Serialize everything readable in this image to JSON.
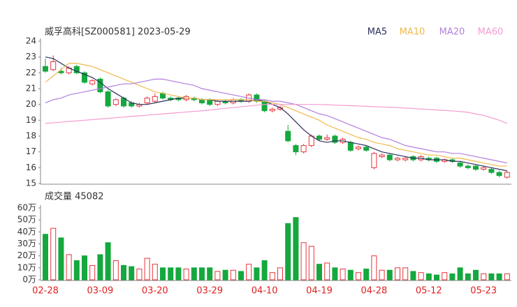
{
  "chart_data": [
    {
      "type": "candlestick",
      "title": "威孚高科[SZ000581] 2023-05-29",
      "categories": [
        "02-28",
        null,
        null,
        null,
        null,
        null,
        null,
        "03-09",
        null,
        null,
        null,
        null,
        null,
        null,
        "03-20",
        null,
        null,
        null,
        null,
        null,
        null,
        "03-29",
        null,
        null,
        null,
        null,
        null,
        null,
        "04-10",
        null,
        null,
        null,
        null,
        null,
        null,
        "04-19",
        null,
        null,
        null,
        null,
        null,
        null,
        "04-28",
        null,
        null,
        null,
        null,
        null,
        null,
        "05-12",
        null,
        null,
        null,
        null,
        null,
        null,
        "05-23",
        null,
        null,
        null
      ],
      "open": [
        22.4,
        22.2,
        22.1,
        22.0,
        22.4,
        22.0,
        21.3,
        21.6,
        20.8,
        20.0,
        20.4,
        20.1,
        19.9,
        20.1,
        20.2,
        20.7,
        20.4,
        20.4,
        20.3,
        20.4,
        20.3,
        20.3,
        20.0,
        20.2,
        20.1,
        20.3,
        20.2,
        20.6,
        20.2,
        19.6,
        19.7,
        18.3,
        17.4,
        17.0,
        17.4,
        18.0,
        17.8,
        18.0,
        17.6,
        17.6,
        17.2,
        17.3,
        16.0,
        16.7,
        16.8,
        16.5,
        16.5,
        16.7,
        16.5,
        16.6,
        16.6,
        16.4,
        16.5,
        16.3,
        16.1,
        16.1,
        15.9,
        15.9,
        15.7,
        15.4
      ],
      "high": [
        22.9,
        23.1,
        22.3,
        22.4,
        22.5,
        22.1,
        21.6,
        21.7,
        20.9,
        20.4,
        20.5,
        20.2,
        20.1,
        20.5,
        20.7,
        20.8,
        20.5,
        20.5,
        20.6,
        20.5,
        20.4,
        20.4,
        20.3,
        20.3,
        20.4,
        20.4,
        20.7,
        20.7,
        20.3,
        19.8,
        19.9,
        18.7,
        17.5,
        17.5,
        18.1,
        18.1,
        18.1,
        18.1,
        17.9,
        17.7,
        17.4,
        17.4,
        17.0,
        16.9,
        16.9,
        16.7,
        16.7,
        16.8,
        16.8,
        16.7,
        16.7,
        16.6,
        16.6,
        16.4,
        16.2,
        16.2,
        16.1,
        16.0,
        15.8,
        15.8
      ],
      "low": [
        22.0,
        22.1,
        21.9,
        21.9,
        21.9,
        21.3,
        21.2,
        20.7,
        19.8,
        19.9,
        19.8,
        19.8,
        19.8,
        20.0,
        20.1,
        20.3,
        20.2,
        20.2,
        20.2,
        20.2,
        20.0,
        19.9,
        19.9,
        20.0,
        20.0,
        20.1,
        20.1,
        20.1,
        19.5,
        19.5,
        19.6,
        17.6,
        16.8,
        16.9,
        17.3,
        17.7,
        17.7,
        17.5,
        17.5,
        17.0,
        17.1,
        17.0,
        15.9,
        16.6,
        16.4,
        16.4,
        16.4,
        16.4,
        16.4,
        16.4,
        16.3,
        16.3,
        16.3,
        16.0,
        15.9,
        15.8,
        15.8,
        15.6,
        15.4,
        15.3
      ],
      "close": [
        22.1,
        22.7,
        22.0,
        22.3,
        22.0,
        21.4,
        21.5,
        20.8,
        19.9,
        20.3,
        19.9,
        19.9,
        20.0,
        20.4,
        20.5,
        20.4,
        20.3,
        20.3,
        20.5,
        20.3,
        20.1,
        20.0,
        20.2,
        20.1,
        20.3,
        20.2,
        20.6,
        20.2,
        19.6,
        19.7,
        19.8,
        17.7,
        17.0,
        17.4,
        18.0,
        17.8,
        17.9,
        17.6,
        17.8,
        17.1,
        17.3,
        17.1,
        16.9,
        16.8,
        16.5,
        16.6,
        16.6,
        16.5,
        16.7,
        16.5,
        16.4,
        16.5,
        16.4,
        16.1,
        16.0,
        15.9,
        16.0,
        15.7,
        15.5,
        15.7
      ],
      "up_color": "#e8343b",
      "down_color": "#15a83e",
      "series": [
        {
          "name": "MA5",
          "color": "#2b2f5c",
          "values": [
            23.0,
            22.9,
            22.6,
            22.3,
            22.1,
            21.9,
            21.7,
            21.4,
            21.0,
            20.7,
            20.4,
            20.1,
            20.0,
            20.0,
            20.1,
            20.2,
            20.3,
            20.4,
            20.4,
            20.4,
            20.3,
            20.3,
            20.2,
            20.2,
            20.2,
            20.2,
            20.2,
            20.3,
            20.2,
            20.0,
            19.8,
            19.4,
            18.9,
            18.4,
            18.0,
            17.7,
            17.6,
            17.7,
            17.7,
            17.6,
            17.5,
            17.4,
            17.2,
            17.0,
            16.9,
            16.8,
            16.7,
            16.6,
            16.6,
            16.5,
            16.5,
            16.5,
            16.4,
            16.4,
            16.3,
            16.2,
            16.1,
            16.0,
            15.9,
            15.8
          ]
        },
        {
          "name": "MA10",
          "color": "#f0b94c",
          "values": [
            21.4,
            21.8,
            22.2,
            22.6,
            22.6,
            22.5,
            22.4,
            22.2,
            22.0,
            21.8,
            21.6,
            21.4,
            21.2,
            21.0,
            20.8,
            20.7,
            20.6,
            20.5,
            20.4,
            20.4,
            20.3,
            20.3,
            20.3,
            20.3,
            20.3,
            20.3,
            20.3,
            20.2,
            20.2,
            20.1,
            20.0,
            19.8,
            19.6,
            19.4,
            19.2,
            19.0,
            18.7,
            18.5,
            18.3,
            18.1,
            17.9,
            17.8,
            17.6,
            17.5,
            17.4,
            17.2,
            17.1,
            17.0,
            16.9,
            16.8,
            16.8,
            16.7,
            16.6,
            16.6,
            16.5,
            16.4,
            16.3,
            16.2,
            16.1,
            16.1
          ]
        },
        {
          "name": "MA20",
          "color": "#b27fdc",
          "values": [
            20.1,
            20.3,
            20.4,
            20.6,
            20.7,
            20.8,
            20.9,
            21.0,
            21.1,
            21.2,
            21.3,
            21.3,
            21.4,
            21.5,
            21.6,
            21.6,
            21.5,
            21.4,
            21.3,
            21.2,
            21.0,
            20.9,
            20.8,
            20.7,
            20.6,
            20.5,
            20.4,
            20.3,
            20.3,
            20.2,
            20.2,
            20.1,
            20.0,
            19.8,
            19.6,
            19.4,
            19.3,
            19.1,
            18.9,
            18.7,
            18.5,
            18.3,
            18.1,
            17.9,
            17.8,
            17.6,
            17.4,
            17.3,
            17.2,
            17.1,
            17.0,
            17.0,
            16.9,
            16.9,
            16.8,
            16.7,
            16.6,
            16.5,
            16.4,
            16.3
          ]
        },
        {
          "name": "MA60",
          "color": "#f59bd0",
          "values": [
            18.8,
            18.84,
            18.88,
            18.92,
            18.96,
            19.0,
            19.04,
            19.08,
            19.12,
            19.16,
            19.2,
            19.24,
            19.28,
            19.32,
            19.36,
            19.4,
            19.44,
            19.48,
            19.52,
            19.56,
            19.6,
            19.65,
            19.7,
            19.75,
            19.8,
            19.85,
            19.9,
            19.95,
            20.0,
            20.0,
            20.0,
            20.0,
            20.0,
            20.0,
            20.0,
            20.0,
            19.98,
            19.96,
            19.94,
            19.92,
            19.9,
            19.88,
            19.86,
            19.84,
            19.82,
            19.8,
            19.77,
            19.74,
            19.71,
            19.68,
            19.65,
            19.62,
            19.59,
            19.55,
            19.5,
            19.4,
            19.3,
            19.15,
            19.0,
            18.8
          ]
        }
      ],
      "ylim": [
        15,
        24
      ],
      "yticks": [
        15,
        16,
        17,
        18,
        19,
        20,
        21,
        22,
        23,
        24
      ],
      "grid": false
    },
    {
      "type": "bar",
      "title": "成交量 45082",
      "values": [
        38,
        43,
        35,
        21,
        16,
        20,
        12,
        21,
        31,
        16,
        12,
        11,
        9,
        18,
        13,
        10,
        10,
        10,
        9,
        10,
        10,
        10,
        7,
        8,
        8,
        7,
        13,
        10,
        16,
        6,
        10,
        47,
        52,
        31,
        28,
        13,
        14,
        10,
        9,
        8,
        6,
        9,
        20,
        8,
        8,
        10,
        10,
        7,
        6,
        5,
        4,
        6,
        5,
        10,
        5,
        8,
        5,
        5,
        5,
        5
      ],
      "ylim": [
        0,
        60
      ],
      "yticks": [
        {
          "value": 0,
          "label": "0万"
        },
        {
          "value": 10,
          "label": "10万"
        },
        {
          "value": 20,
          "label": "20万"
        },
        {
          "value": 30,
          "label": "30万"
        },
        {
          "value": 40,
          "label": "40万"
        },
        {
          "value": 50,
          "label": "50万"
        },
        {
          "value": 60,
          "label": "60万"
        }
      ],
      "grid": false
    }
  ]
}
